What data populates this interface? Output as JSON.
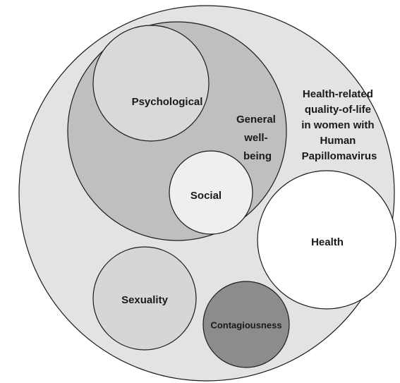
{
  "nodes": [
    {
      "id": "hrqol",
      "lines": [
        "Health-related",
        "quality-of-life",
        "in women with",
        "Human",
        "Papillomavirus"
      ]
    },
    {
      "id": "wellbeing",
      "lines": [
        "General",
        "well-",
        "being"
      ]
    },
    {
      "id": "psychological",
      "label": "Psychological"
    },
    {
      "id": "social",
      "label": "Social"
    },
    {
      "id": "health",
      "label": "Health"
    },
    {
      "id": "sexuality",
      "label": "Sexuality"
    },
    {
      "id": "contagiousness",
      "label": "Contagiousness"
    }
  ]
}
